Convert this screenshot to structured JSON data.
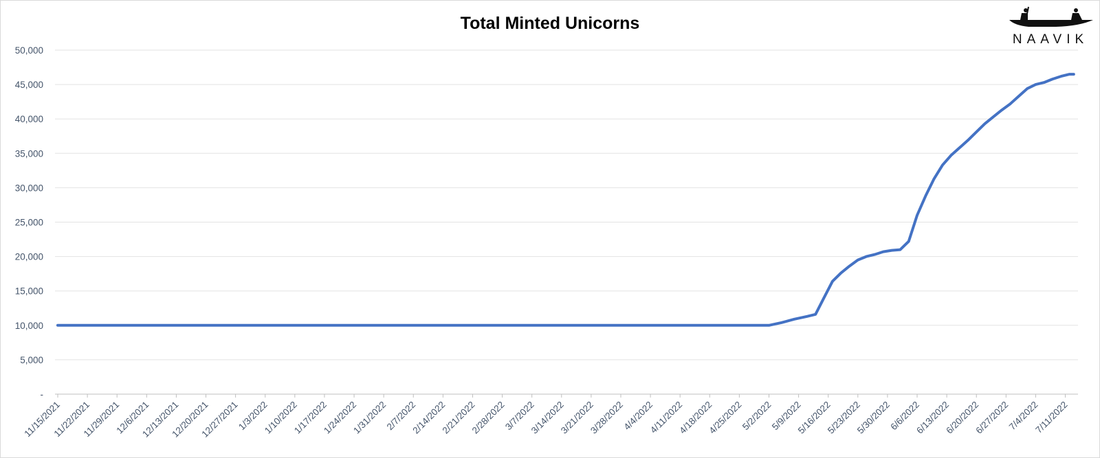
{
  "logo": {
    "text": "NAAVIK"
  },
  "chart_data": {
    "type": "line",
    "title": "Total Minted Unicorns",
    "xlabel": "",
    "ylabel": "",
    "ylim": [
      0,
      50000
    ],
    "yticks": [
      0,
      5000,
      10000,
      15000,
      20000,
      25000,
      30000,
      35000,
      40000,
      45000,
      50000
    ],
    "ytick_labels": [
      "-",
      "5,000",
      "10,000",
      "15,000",
      "20,000",
      "25,000",
      "30,000",
      "35,000",
      "40,000",
      "45,000",
      "50,000"
    ],
    "xlim": [
      "11/15/2021",
      "7/14/2022"
    ],
    "xtick_labels": [
      "11/15/2021",
      "11/22/2021",
      "11/29/2021",
      "12/6/2021",
      "12/13/2021",
      "12/20/2021",
      "12/27/2021",
      "1/3/2022",
      "1/10/2022",
      "1/17/2022",
      "1/24/2022",
      "1/31/2022",
      "2/7/2022",
      "2/14/2022",
      "2/21/2022",
      "2/28/2022",
      "3/7/2022",
      "3/14/2022",
      "3/21/2022",
      "3/28/2022",
      "4/4/2022",
      "4/11/2022",
      "4/18/2022",
      "4/25/2022",
      "5/2/2022",
      "5/9/2022",
      "5/16/2022",
      "5/23/2022",
      "5/30/2022",
      "6/6/2022",
      "6/13/2022",
      "6/20/2022",
      "6/27/2022",
      "7/4/2022",
      "7/11/2022"
    ],
    "grid": true,
    "legend": "none",
    "colors": {
      "line": "#4472c4",
      "tick_text": "#44546a",
      "grid": "#e3e3e3"
    },
    "series": [
      {
        "x": [
          "11/15/2021",
          "5/2/2022",
          "5/5/2022",
          "5/8/2022",
          "5/11/2022",
          "5/13/2022",
          "5/15/2022",
          "5/17/2022",
          "5/19/2022",
          "5/21/2022",
          "5/23/2022",
          "5/25/2022",
          "5/27/2022",
          "5/29/2022",
          "5/31/2022",
          "6/2/2022",
          "6/4/2022",
          "6/6/2022",
          "6/8/2022",
          "6/10/2022",
          "6/12/2022",
          "6/14/2022",
          "6/16/2022",
          "6/18/2022",
          "6/20/2022",
          "6/22/2022",
          "6/24/2022",
          "6/26/2022",
          "6/28/2022",
          "6/30/2022",
          "7/2/2022",
          "7/4/2022",
          "7/6/2022",
          "7/8/2022",
          "7/10/2022",
          "7/12/2022",
          "7/13/2022"
        ],
        "values": [
          10000,
          10000,
          10400,
          10900,
          11300,
          11600,
          14000,
          16400,
          17600,
          18600,
          19500,
          20000,
          20300,
          20700,
          20900,
          21000,
          22200,
          26000,
          28800,
          31300,
          33300,
          34700,
          35800,
          36900,
          38100,
          39300,
          40300,
          41300,
          42200,
          43300,
          44400,
          45000,
          45300,
          45800,
          46200,
          46500,
          46500
        ]
      }
    ]
  }
}
